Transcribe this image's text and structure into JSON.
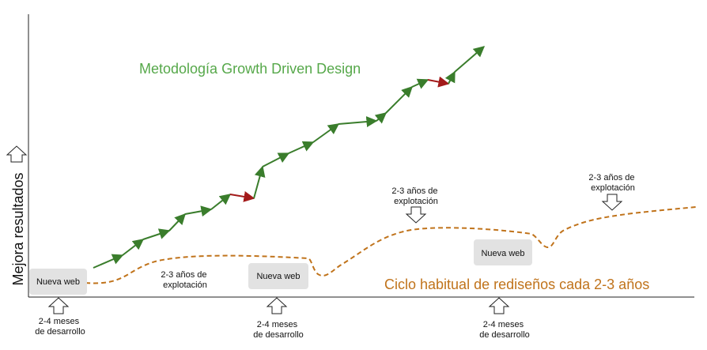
{
  "y_axis_label": "Mejora resultados",
  "gdd": {
    "title": "Metodología Growth Driven Design",
    "colors": {
      "up": "#3a7d2c",
      "down": "#a31a1a"
    }
  },
  "cycle": {
    "title": "Ciclo habitual de rediseños cada 2-3 años",
    "color": "#c0731b"
  },
  "boxes": [
    {
      "label": "Nueva web"
    },
    {
      "label": "Nueva web"
    },
    {
      "label": "Nueva web"
    }
  ],
  "development_notes": [
    {
      "line1": "2-4 meses",
      "line2": "de desarrollo"
    },
    {
      "line1": "2-4 meses",
      "line2": "de desarrollo"
    },
    {
      "line1": "2-4 meses",
      "line2": "de desarrollo"
    }
  ],
  "exploitation_notes": [
    {
      "line1": "2-3 años de",
      "line2": "explotación"
    },
    {
      "line1": "2-3 años de",
      "line2": "explotación"
    },
    {
      "line1": "2-3 años de",
      "line2": "explotación"
    }
  ]
}
